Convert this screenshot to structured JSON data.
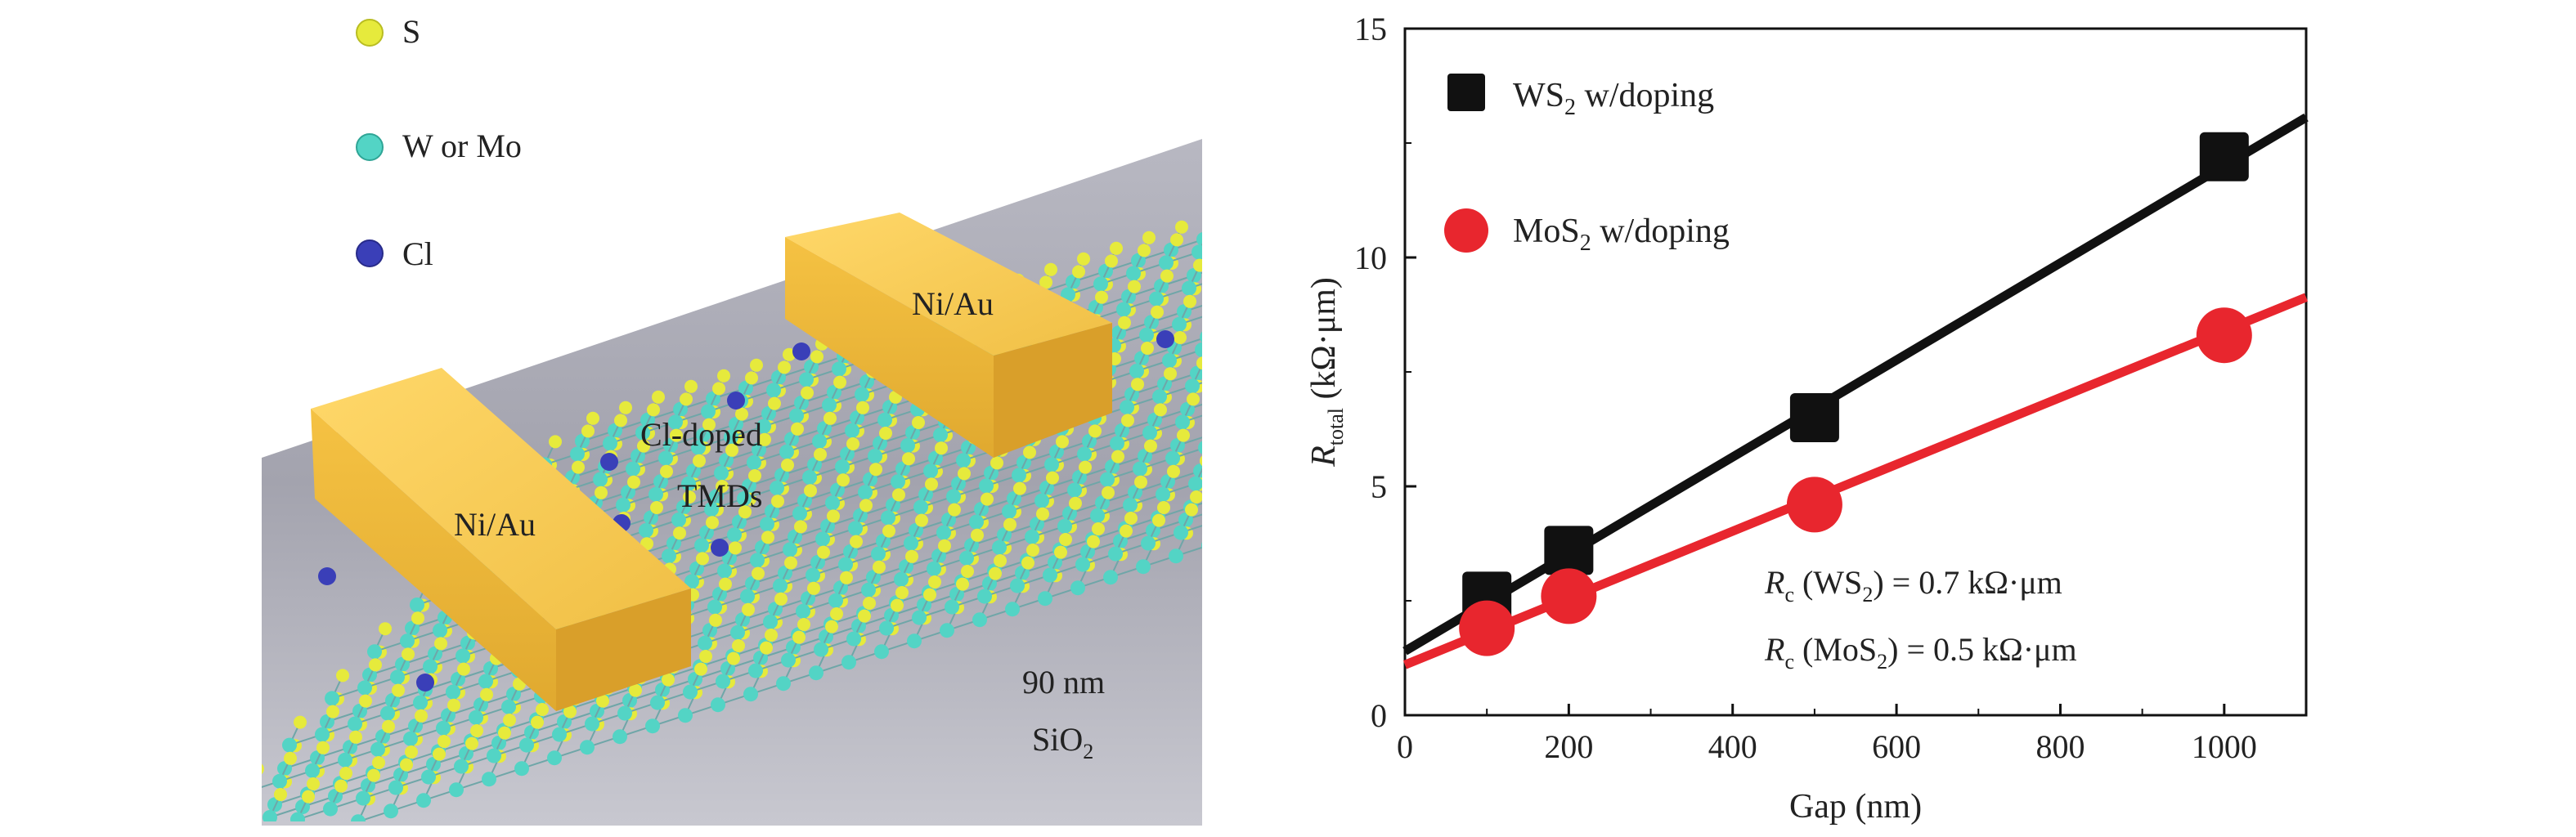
{
  "schematic": {
    "legend": [
      {
        "label": "S",
        "color": "#e6ea3c"
      },
      {
        "label": "W or Mo",
        "color": "#53d4c5"
      },
      {
        "label": "Cl",
        "color": "#3a3fb8"
      }
    ],
    "contact_left": "Ni/Au",
    "contact_right": "Ni/Au",
    "channel_line1": "Cl-doped",
    "channel_line2": "TMDs",
    "substrate_line1": "90 nm",
    "substrate_prefix": "SiO",
    "substrate_sub": "2",
    "colors": {
      "contact": "#f3c54a",
      "substrate": "#9e9ea8"
    }
  },
  "chart_data": {
    "type": "scatter",
    "xlabel": "Gap (nm)",
    "ylabel_symbol": "R",
    "ylabel_sub": "total",
    "ylabel_unit": " (kΩ·μm)",
    "xlim": [
      0,
      1100
    ],
    "ylim": [
      0,
      15
    ],
    "xticks": [
      0,
      200,
      400,
      600,
      800,
      1000
    ],
    "yticks": [
      0,
      5,
      10,
      15
    ],
    "grid": false,
    "legend_position": "top-left",
    "series": [
      {
        "name_prefix": "WS",
        "name_sub": "2",
        "name_suffix": " w/doping",
        "marker": "square",
        "color": "#111111",
        "x": [
          100,
          200,
          500,
          1000
        ],
        "y": [
          2.6,
          3.6,
          6.5,
          12.2
        ],
        "fit": {
          "intercept": 1.4,
          "slope": 0.0106
        }
      },
      {
        "name_prefix": "MoS",
        "name_sub": "2",
        "name_suffix": " w/doping",
        "marker": "circle",
        "color": "#e8262e",
        "x": [
          100,
          200,
          500,
          1000
        ],
        "y": [
          1.9,
          2.6,
          4.6,
          8.3
        ],
        "fit": {
          "intercept": 1.1,
          "slope": 0.0073
        }
      }
    ],
    "annotations": [
      {
        "symbol": "R",
        "sub": "c",
        "mid_prefix": " (WS",
        "mid_sub": "2",
        "tail": ") = 0.7 kΩ·μm"
      },
      {
        "symbol": "R",
        "sub": "c",
        "mid_prefix": " (MoS",
        "mid_sub": "2",
        "tail": ") = 0.5 kΩ·μm"
      }
    ]
  }
}
